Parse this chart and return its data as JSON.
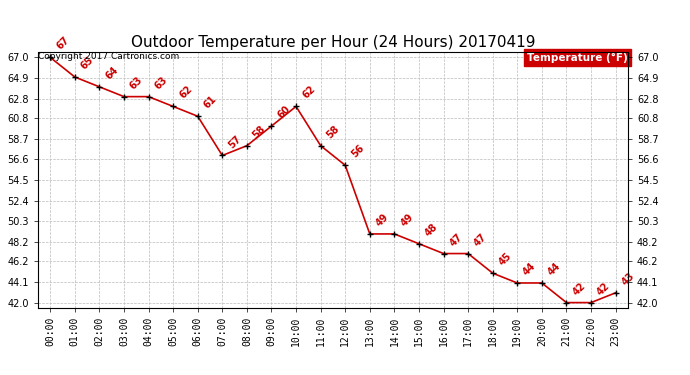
{
  "title": "Outdoor Temperature per Hour (24 Hours) 20170419",
  "copyright": "Copyright 2017 Cartronics.com",
  "legend_label": "Temperature (°F)",
  "hours": [
    0,
    1,
    2,
    3,
    4,
    5,
    6,
    7,
    8,
    9,
    10,
    11,
    12,
    13,
    14,
    15,
    16,
    17,
    18,
    19,
    20,
    21,
    22,
    23
  ],
  "temperatures": [
    67,
    65,
    64,
    63,
    63,
    62,
    61,
    57,
    58,
    60,
    62,
    58,
    56,
    49,
    49,
    48,
    47,
    47,
    45,
    44,
    44,
    42,
    42,
    43
  ],
  "x_labels": [
    "00:00",
    "01:00",
    "02:00",
    "03:00",
    "04:00",
    "05:00",
    "06:00",
    "07:00",
    "08:00",
    "09:00",
    "10:00",
    "11:00",
    "12:00",
    "13:00",
    "14:00",
    "15:00",
    "16:00",
    "17:00",
    "18:00",
    "19:00",
    "20:00",
    "21:00",
    "22:00",
    "23:00"
  ],
  "y_ticks": [
    42.0,
    44.1,
    46.2,
    48.2,
    50.3,
    52.4,
    54.5,
    56.6,
    58.7,
    60.8,
    62.8,
    64.9,
    67.0
  ],
  "ylim": [
    41.5,
    67.5
  ],
  "xlim": [
    -0.5,
    23.5
  ],
  "line_color": "#cc0000",
  "marker_color": "black",
  "annotation_color": "#cc0000",
  "bg_color": "white",
  "grid_color": "#bbbbbb",
  "legend_bg": "#cc0000",
  "legend_fg": "white",
  "title_fontsize": 11,
  "annotation_fontsize": 7,
  "tick_fontsize": 7,
  "copyright_fontsize": 6.5
}
